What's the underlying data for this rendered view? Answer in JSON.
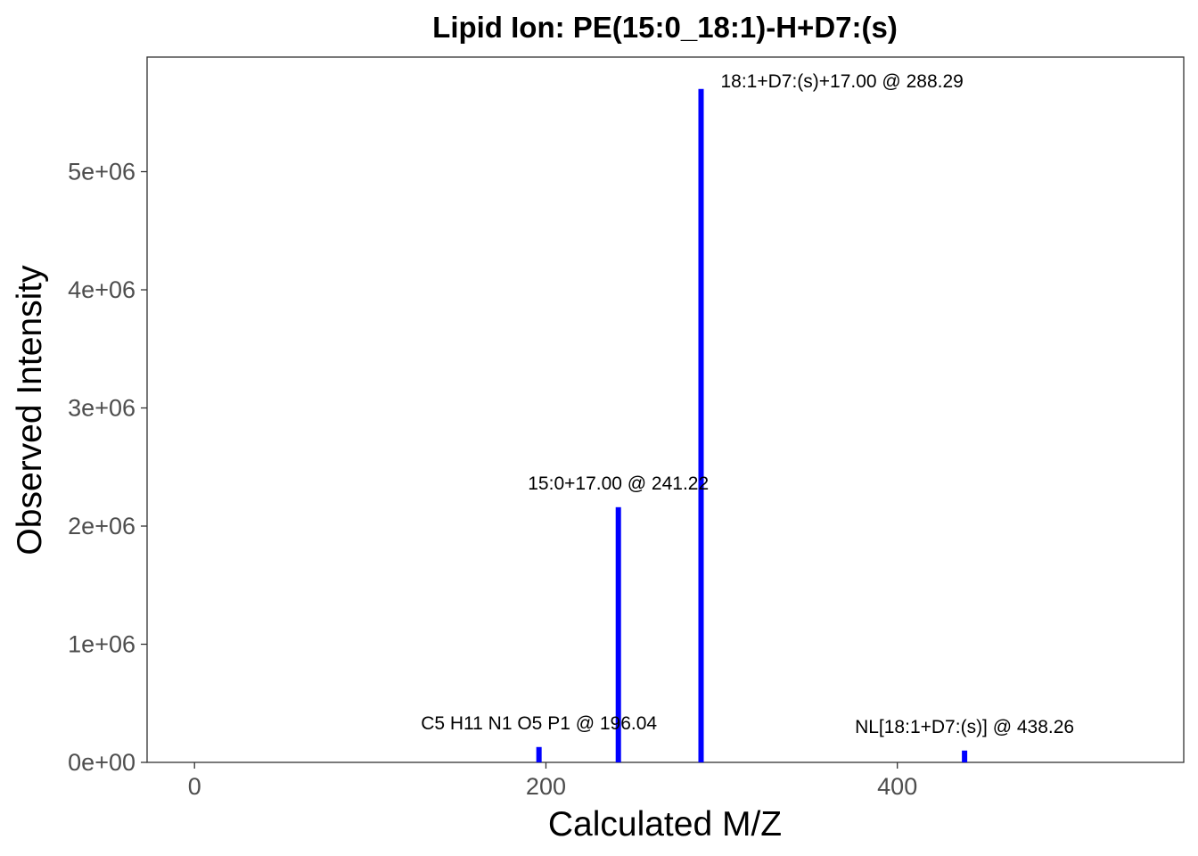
{
  "chart_data": {
    "type": "bar",
    "title": "Lipid Ion: PE(15:0_18:1)-H+D7:(s)",
    "xlabel": "Calculated M/Z",
    "ylabel": "Observed Intensity",
    "xlim": [
      -27,
      563
    ],
    "ylim": [
      0,
      5970000
    ],
    "xticks": [
      {
        "value": 0,
        "label": "0"
      },
      {
        "value": 200,
        "label": "200"
      },
      {
        "value": 400,
        "label": "400"
      }
    ],
    "yticks": [
      {
        "value": 0,
        "label": "0e+00"
      },
      {
        "value": 1000000,
        "label": "1e+06"
      },
      {
        "value": 2000000,
        "label": "2e+06"
      },
      {
        "value": 3000000,
        "label": "3e+06"
      },
      {
        "value": 4000000,
        "label": "4e+06"
      },
      {
        "value": 5000000,
        "label": "5e+06"
      }
    ],
    "bar_color": "#0000ff",
    "grid": false,
    "peaks": [
      {
        "mz": 196.04,
        "intensity": 130000,
        "label": "C5 H11 N1 O5 P1 @ 196.04"
      },
      {
        "mz": 241.22,
        "intensity": 2160000,
        "label": "15:0+17.00 @ 241.22"
      },
      {
        "mz": 288.29,
        "intensity": 5700000,
        "label": "18:1+D7:(s)+17.00 @ 288.29"
      },
      {
        "mz": 438.26,
        "intensity": 100000,
        "label": "NL[18:1+D7:(s)] @ 438.26"
      }
    ]
  }
}
